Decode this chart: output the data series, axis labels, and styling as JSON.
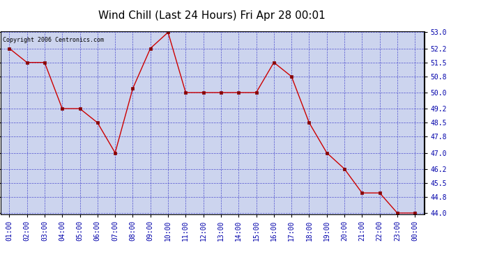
{
  "title": "Wind Chill (Last 24 Hours) Fri Apr 28 00:01",
  "copyright_text": "Copyright 2006 Centronics.com",
  "x_labels": [
    "01:00",
    "02:00",
    "03:00",
    "04:00",
    "05:00",
    "06:00",
    "07:00",
    "08:00",
    "09:00",
    "10:00",
    "11:00",
    "12:00",
    "13:00",
    "14:00",
    "15:00",
    "16:00",
    "17:00",
    "18:00",
    "19:00",
    "20:00",
    "21:00",
    "22:00",
    "23:00",
    "00:00"
  ],
  "y_values": [
    52.2,
    51.5,
    51.5,
    49.2,
    49.2,
    48.5,
    47.0,
    50.2,
    52.2,
    53.0,
    50.0,
    50.0,
    50.0,
    50.0,
    50.0,
    51.5,
    50.8,
    48.5,
    47.0,
    46.2,
    45.0,
    45.0,
    44.0,
    44.0
  ],
  "ylim_min": 44.0,
  "ylim_max": 53.0,
  "yticks": [
    44.0,
    44.8,
    45.5,
    46.2,
    47.0,
    47.8,
    48.5,
    49.2,
    50.0,
    50.8,
    51.5,
    52.2,
    53.0
  ],
  "line_color": "#cc0000",
  "marker_color": "#880000",
  "bg_color": "#ccd4ee",
  "grid_color": "#4444cc",
  "title_color": "#000000",
  "title_fontsize": 11,
  "copyright_fontsize": 6,
  "tick_label_color": "#0000aa",
  "tick_label_fontsize": 7
}
